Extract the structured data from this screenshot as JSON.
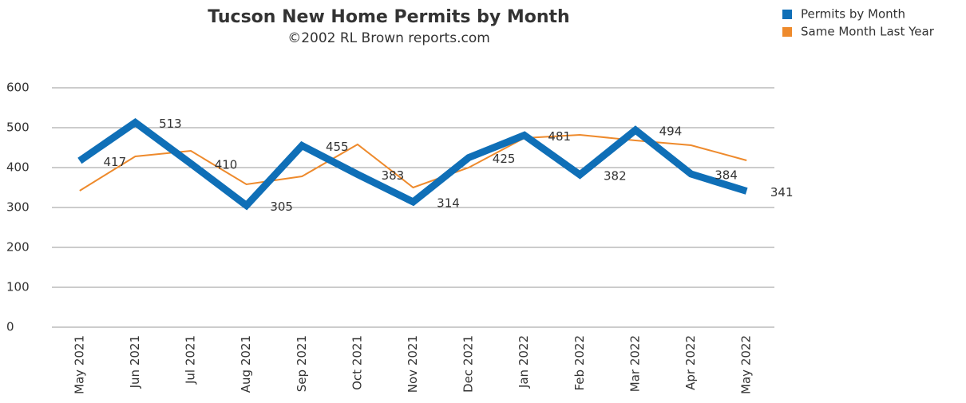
{
  "chart_data": {
    "type": "line",
    "title": "Tucson New Home Permits by Month",
    "subtitle": "©2002 RL Brown reports.com",
    "categories": [
      "May 2021",
      "Jun 2021",
      "Jul 2021",
      "Aug 2021",
      "Sep 2021",
      "Oct 2021",
      "Nov 2021",
      "Dec 2021",
      "Jan 2022",
      "Feb 2022",
      "Mar 2022",
      "Apr 2022",
      "May 2022"
    ],
    "series": [
      {
        "name": "Permits by Month",
        "color": "#0f6fb7",
        "values": [
          417,
          513,
          410,
          305,
          455,
          383,
          314,
          425,
          481,
          382,
          494,
          384,
          341
        ]
      },
      {
        "name": "Same Month Last Year",
        "color": "#ee8a2c",
        "values": [
          342,
          428,
          442,
          358,
          378,
          458,
          350,
          400,
          474,
          482,
          468,
          456,
          418
        ]
      }
    ],
    "ylim": [
      0,
      600
    ],
    "yticks": [
      0,
      100,
      200,
      300,
      400,
      500,
      600
    ],
    "grid": true,
    "legend": "top-right"
  }
}
